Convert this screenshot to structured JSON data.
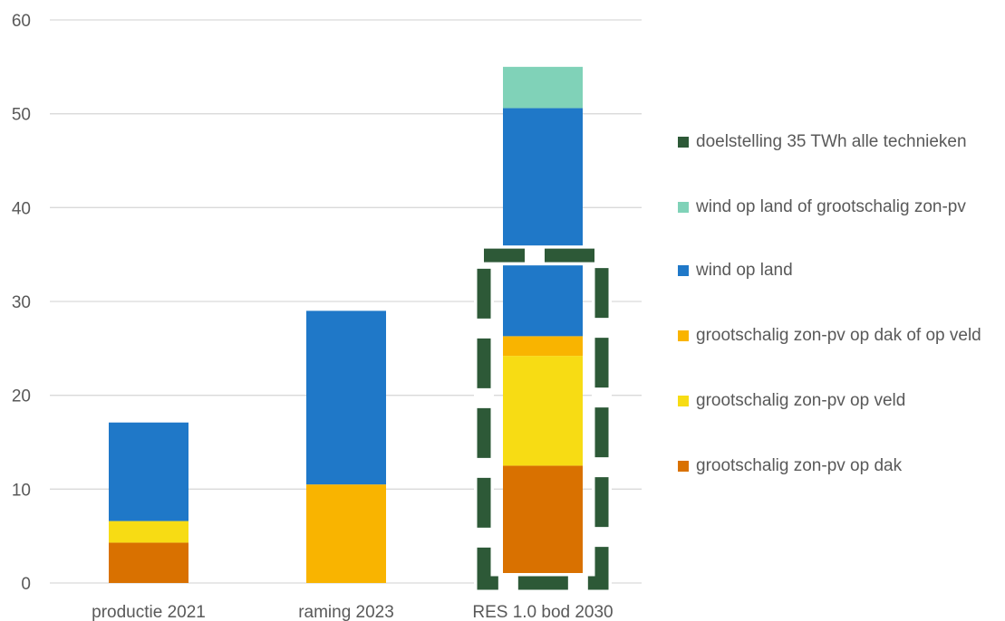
{
  "chart_data": {
    "type": "bar",
    "stacked": true,
    "title": "",
    "xlabel": "",
    "ylabel": "",
    "ylim": [
      0,
      60
    ],
    "yticks": [
      0,
      10,
      20,
      30,
      40,
      50,
      60
    ],
    "grid": true,
    "legend_position": "right",
    "categories": [
      "productie 2021",
      "raming 2023",
      "RES 1.0 bod 2030"
    ],
    "series": [
      {
        "name": "grootschalig zon-pv op dak",
        "color": "#D97100",
        "values": [
          4.3,
          0,
          12.5
        ]
      },
      {
        "name": "grootschalig zon-pv op veld",
        "color": "#F7DC14",
        "values": [
          2.3,
          0,
          11.7
        ]
      },
      {
        "name": "grootschalig zon-pv op dak of op veld",
        "color": "#F9B400",
        "values": [
          0,
          10.5,
          2.1
        ]
      },
      {
        "name": "wind op land",
        "color": "#1F78C8",
        "values": [
          10.5,
          18.5,
          24.3
        ]
      },
      {
        "name": "wind op land of grootschalig zon-pv",
        "color": "#80D2B8",
        "values": [
          0,
          0,
          4.4
        ]
      }
    ],
    "target": {
      "name": "doelstelling 35 TWh alle technieken",
      "value": 35,
      "category": "RES 1.0 bod 2030",
      "color": "#2D5937"
    },
    "legend_order": [
      "doelstelling 35 TWh alle technieken",
      "wind op land of grootschalig zon-pv",
      "wind op land",
      "grootschalig zon-pv op dak of op veld",
      "grootschalig zon-pv op veld",
      "grootschalig zon-pv op dak"
    ]
  }
}
